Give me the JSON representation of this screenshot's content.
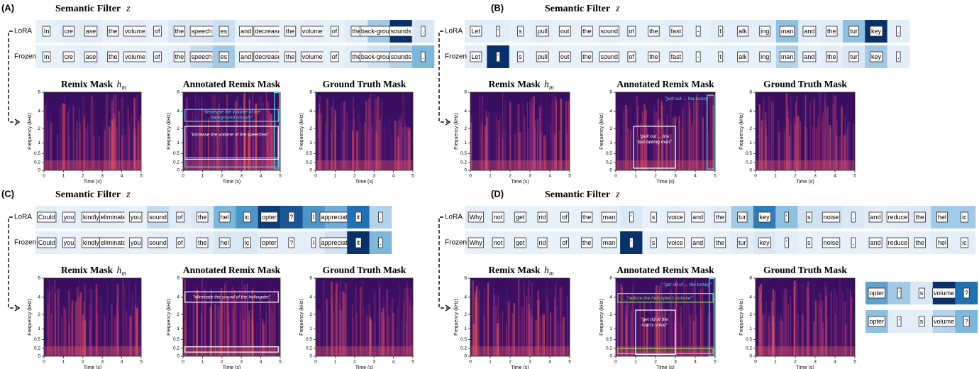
{
  "figure": {
    "token_colormap": [
      "#f7fbff",
      "#c6dbef",
      "#6baed6",
      "#2171b5",
      "#08306b"
    ],
    "spectrogram_axes": {
      "xlabel": "Time (s)",
      "ylabel": "Frequency (kHz)",
      "xlim": [
        0,
        5
      ],
      "xticks": [
        0,
        1,
        2,
        3,
        4,
        5
      ],
      "ylim": [
        0,
        8
      ],
      "yticks": [
        0,
        0.2,
        0.5,
        1,
        2,
        4,
        8
      ],
      "yscale": "mel"
    },
    "panels": [
      {
        "label": "(A)",
        "filter": {
          "title": "Semantic Filter",
          "symbol": "z",
          "rows": [
            "LoRA",
            "Frozen"
          ],
          "segments": [
            {
              "tokens": [
                "In",
                "cre",
                "ase",
                "the",
                "volume",
                "of",
                "the",
                "speech",
                "es",
                "and",
                "decrease",
                "the",
                "volume",
                "of",
                "the",
                "back-ground",
                "sounds",
                "."
              ],
              "weights": [
                [
                  0.08,
                  0.1,
                  0.12,
                  0.08,
                  0.1,
                  0.08,
                  0.15,
                  0.15,
                  0.22,
                  0.08,
                  0.1,
                  0.08,
                  0.1,
                  0.08,
                  0.12,
                  0.35,
                  1.0,
                  0.15
                ],
                [
                  0.08,
                  0.08,
                  0.1,
                  0.08,
                  0.08,
                  0.08,
                  0.1,
                  0.25,
                  0.35,
                  0.08,
                  0.08,
                  0.08,
                  0.08,
                  0.08,
                  0.1,
                  0.2,
                  0.3,
                  0.45
                ]
              ]
            }
          ]
        },
        "plots": [
          {
            "title": "Remix Mask",
            "symbol": "h",
            "subscript": "m"
          },
          {
            "title": "Annotated Remix Mask",
            "annotations": [
              {
                "lines": [
                  "\"decrease the volume of the",
                  "background sounds\""
                ],
                "color": "#4fd8f0"
              },
              {
                "lines": [
                  "\"increase the volume of the speeches\""
                ],
                "color": "#ffffff"
              }
            ]
          },
          {
            "title": "Ground Truth Mask"
          }
        ]
      },
      {
        "label": "(B)",
        "filter": {
          "title": "Semantic Filter",
          "symbol": "z",
          "rows": [
            "LoRA",
            "Frozen"
          ],
          "segments": [
            {
              "tokens": [
                "Let",
                "'",
                "s",
                "pull",
                "out",
                "the",
                "sound",
                "of",
                "the",
                "fast",
                "-",
                "t",
                "alk",
                "ing",
                "man",
                "and",
                "the",
                "tur",
                "key",
                "."
              ],
              "weights": [
                [
                  0.1,
                  0.1,
                  0.08,
                  0.1,
                  0.08,
                  0.08,
                  0.1,
                  0.08,
                  0.08,
                  0.1,
                  0.08,
                  0.1,
                  0.1,
                  0.1,
                  0.4,
                  0.1,
                  0.12,
                  0.4,
                  1.0,
                  0.1
                ],
                [
                  0.1,
                  1.0,
                  0.08,
                  0.08,
                  0.08,
                  0.08,
                  0.08,
                  0.08,
                  0.08,
                  0.08,
                  0.08,
                  0.08,
                  0.08,
                  0.08,
                  0.3,
                  0.08,
                  0.1,
                  0.15,
                  0.35,
                  0.1
                ]
              ]
            }
          ]
        },
        "plots": [
          {
            "title": "Remix Mask",
            "symbol": "h",
            "subscript": "m"
          },
          {
            "title": "Annotated Remix Mask",
            "annotations": [
              {
                "lines": [
                  "\"pull out ... the turkey\""
                ],
                "color": "#4fd8f0"
              },
              {
                "lines": [
                  "\"pull out ... the",
                  "fast-talking man\""
                ],
                "color": "#ffffff"
              }
            ]
          },
          {
            "title": "Ground Truth Mask"
          }
        ]
      },
      {
        "label": "(C)",
        "filter": {
          "title": "Semantic Filter",
          "symbol": "z",
          "rows": [
            "LoRA",
            "Frozen"
          ],
          "segments": [
            {
              "tokens": [
                "Could",
                "you",
                "kindly",
                "eliminate",
                "you",
                "sound",
                "of",
                "the",
                "hel",
                "ic",
                "opter",
                "?",
                "I",
                "appreciate",
                "it",
                "."
              ],
              "weights": [
                [
                  0.1,
                  0.08,
                  0.1,
                  0.1,
                  0.08,
                  0.25,
                  0.12,
                  0.15,
                  0.45,
                  0.6,
                  0.95,
                  0.85,
                  0.6,
                  0.5,
                  0.75,
                  0.3
                ],
                [
                  0.1,
                  0.08,
                  0.08,
                  0.08,
                  0.08,
                  0.1,
                  0.08,
                  0.1,
                  0.15,
                  0.15,
                  0.1,
                  0.1,
                  0.1,
                  0.2,
                  1.0,
                  0.45
                ]
              ]
            }
          ]
        },
        "plots": [
          {
            "title": "Remix Mask",
            "symbol": "h",
            "subscript": "m"
          },
          {
            "title": "Annotated Remix Mask",
            "annotations": [
              {
                "lines": [
                  "\"eliminate the sound of the helicopter\""
                ],
                "color": "#ffffff"
              }
            ]
          },
          {
            "title": "Ground Truth Mask"
          }
        ]
      },
      {
        "label": "(D)",
        "filter": {
          "title": "Semantic Filter",
          "symbol": "z",
          "rows": [
            "LoRA",
            "Frozen"
          ],
          "segments": [
            {
              "tokens": [
                "Why",
                "not",
                "get",
                "rid",
                "of",
                "the",
                "man",
                "'",
                "s",
                "voice",
                "and",
                "the",
                "tur",
                "key",
                "'",
                "s",
                "noise",
                ",",
                "and",
                "reduce",
                "the",
                "hel",
                "ic"
              ],
              "weights": [
                [
                  0.1,
                  0.08,
                  0.08,
                  0.08,
                  0.08,
                  0.08,
                  0.1,
                  0.15,
                  0.08,
                  0.1,
                  0.08,
                  0.1,
                  0.35,
                  0.7,
                  0.4,
                  0.2,
                  0.2,
                  0.15,
                  0.1,
                  0.12,
                  0.15,
                  0.35,
                  0.35
                ],
                [
                  0.08,
                  0.08,
                  0.08,
                  0.08,
                  0.08,
                  0.08,
                  0.08,
                  1.0,
                  0.08,
                  0.08,
                  0.08,
                  0.08,
                  0.1,
                  0.15,
                  0.1,
                  0.08,
                  0.08,
                  0.08,
                  0.08,
                  0.08,
                  0.08,
                  0.1,
                  0.1
                ]
              ]
            },
            {
              "tokens": [
                "opter",
                "'",
                "s",
                "volume",
                "?"
              ],
              "weights": [
                [
                  0.55,
                  0.35,
                  0.15,
                  1.0,
                  0.75
                ],
                [
                  0.4,
                  0.1,
                  0.1,
                  0.3,
                  0.45
                ]
              ]
            }
          ]
        },
        "plots": [
          {
            "title": "Remix Mask",
            "symbol": "h",
            "subscript": "m"
          },
          {
            "title": "Annotated Remix Mask",
            "annotations": [
              {
                "lines": [
                  "\"get rid of ... the turkey\""
                ],
                "color": "#4fd8f0"
              },
              {
                "lines": [
                  "\"reduce the helicopter's volume\""
                ],
                "color": "#7ee05a"
              },
              {
                "lines": [
                  "\"get rid of the",
                  "man's voice\""
                ],
                "color": "#ffffff"
              }
            ]
          },
          {
            "title": "Ground Truth Mask"
          }
        ]
      }
    ]
  }
}
